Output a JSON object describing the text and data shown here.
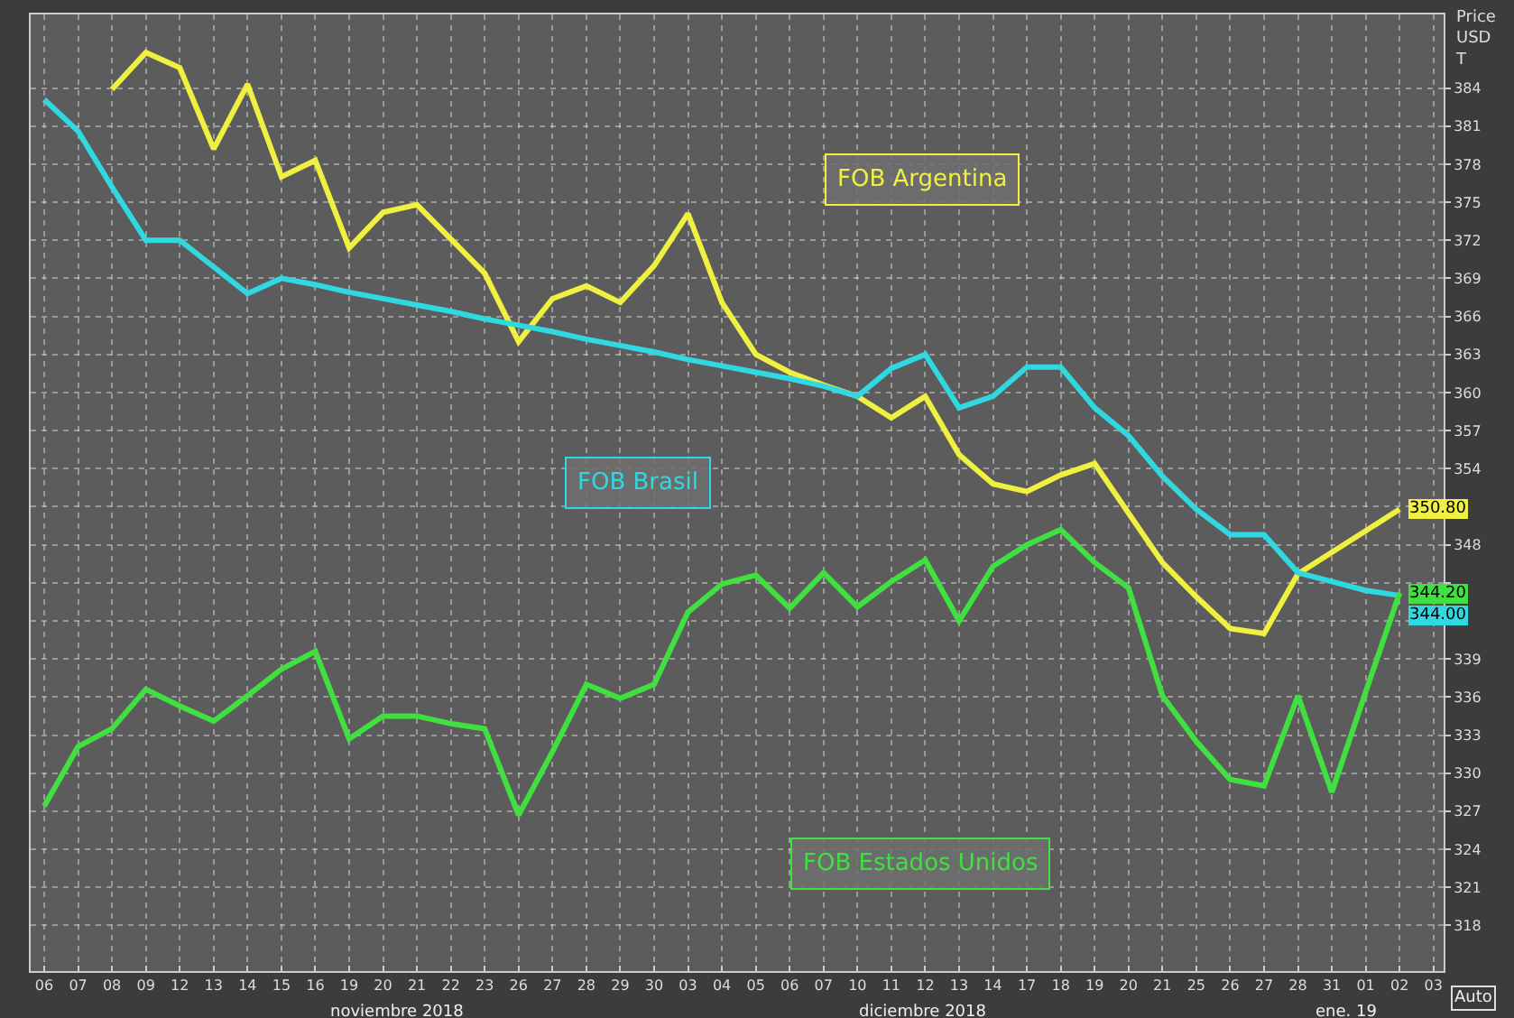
{
  "chart_data": {
    "type": "line",
    "ylabel": "Price\nUSD\nT",
    "categories": [
      "06",
      "07",
      "08",
      "09",
      "12",
      "13",
      "14",
      "15",
      "16",
      "19",
      "20",
      "21",
      "22",
      "23",
      "26",
      "27",
      "28",
      "29",
      "30",
      "03",
      "04",
      "05",
      "06",
      "07",
      "10",
      "11",
      "12",
      "13",
      "14",
      "17",
      "18",
      "19",
      "20",
      "21",
      "25",
      "26",
      "27",
      "28",
      "31",
      "01",
      "02",
      "03"
    ],
    "series": [
      {
        "name": "FOB Argentina",
        "color": "#f0f040",
        "values": [
          null,
          null,
          383.9,
          386.8,
          385.6,
          379.2,
          384.3,
          377.0,
          378.3,
          371.4,
          374.2,
          374.8,
          372.1,
          369.4,
          364.0,
          367.4,
          368.4,
          367.1,
          370.0,
          374.1,
          367.1,
          363.0,
          361.6,
          360.6,
          359.7,
          358.0,
          359.7,
          355.1,
          352.8,
          352.2,
          353.5,
          354.4,
          350.5,
          346.6,
          343.9,
          341.4,
          341.0,
          345.7,
          347.4,
          349.1,
          350.8,
          null
        ],
        "value_labels": [
          null,
          null,
          null,
          null,
          null,
          null,
          null,
          null,
          null,
          null,
          null,
          null,
          null,
          null,
          null,
          null,
          null,
          null,
          null,
          null,
          null,
          null,
          null,
          null,
          null,
          null,
          null,
          null,
          null,
          null,
          null,
          null,
          null,
          null,
          null,
          null,
          null,
          null,
          null,
          null,
          "350.80",
          null
        ]
      },
      {
        "name": "FOB Brasil",
        "color": "#30d8e0",
        "values": [
          383.1,
          380.6,
          376.2,
          372.0,
          372.0,
          369.9,
          367.8,
          369.0,
          368.5,
          367.9,
          367.4,
          366.9,
          366.4,
          365.8,
          365.3,
          364.8,
          364.2,
          363.7,
          363.2,
          362.6,
          362.1,
          361.6,
          361.1,
          360.5,
          359.7,
          361.9,
          363.0,
          358.8,
          359.7,
          362.0,
          362.0,
          358.8,
          356.6,
          353.4,
          350.8,
          348.8,
          348.8,
          345.8,
          345.1,
          344.4,
          344.0,
          null
        ],
        "value_labels": [
          null,
          null,
          null,
          null,
          null,
          null,
          null,
          null,
          null,
          null,
          null,
          null,
          null,
          null,
          null,
          null,
          null,
          null,
          null,
          null,
          null,
          null,
          null,
          null,
          null,
          null,
          null,
          null,
          null,
          null,
          null,
          null,
          null,
          null,
          null,
          null,
          null,
          null,
          null,
          null,
          "344.00",
          null
        ]
      },
      {
        "name": "FOB Estados Unidos",
        "color": "#40e040",
        "values": [
          327.4,
          332.1,
          333.5,
          336.6,
          335.3,
          334.1,
          336.1,
          338.2,
          339.6,
          332.7,
          334.5,
          334.5,
          333.9,
          333.5,
          326.7,
          331.7,
          337.0,
          335.9,
          337.0,
          342.7,
          344.9,
          345.6,
          343.0,
          345.8,
          343.1,
          345.1,
          346.8,
          342.0,
          346.3,
          348.0,
          349.2,
          346.6,
          344.6,
          336.1,
          332.5,
          329.5,
          329.0,
          336.1,
          328.5,
          336.4,
          344.2,
          null
        ],
        "value_labels": [
          null,
          null,
          null,
          null,
          null,
          null,
          null,
          null,
          null,
          null,
          null,
          null,
          null,
          null,
          null,
          null,
          null,
          null,
          null,
          null,
          null,
          null,
          null,
          null,
          null,
          null,
          null,
          null,
          null,
          null,
          null,
          null,
          null,
          null,
          null,
          null,
          null,
          null,
          null,
          null,
          "344.20",
          null
        ]
      }
    ],
    "ylim": [
      314.4,
      389.8
    ],
    "yticks": [
      318,
      321,
      324,
      327,
      330,
      333,
      336,
      339,
      {
        "value": 342,
        "label": null
      },
      {
        "value": 345,
        "label": null
      },
      348,
      {
        "value": 351,
        "label": null
      },
      354,
      357,
      360,
      363,
      366,
      369,
      372,
      375,
      378,
      381,
      384
    ],
    "annotations": [
      "noviembre 2018",
      "diciembre 2018",
      "ene. 19",
      "Auto"
    ],
    "grid": true,
    "legend": false,
    "marker": "none",
    "line_style": "solid"
  }
}
